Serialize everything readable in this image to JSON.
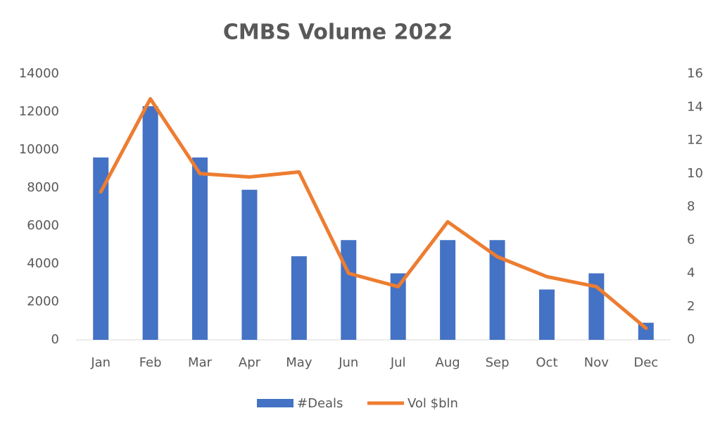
{
  "chart_data": {
    "type": "bar-line",
    "title": "CMBS Volume 2022",
    "categories": [
      "Jan",
      "Feb",
      "Mar",
      "Apr",
      "May",
      "Jun",
      "Jul",
      "Aug",
      "Sep",
      "Oct",
      "Nov",
      "Dec"
    ],
    "series": [
      {
        "name": "#Deals",
        "type": "bar",
        "color": "#4472c4",
        "values": [
          9600,
          12300,
          9600,
          7900,
          4400,
          5250,
          3500,
          5250,
          5250,
          2650,
          3500,
          900
        ]
      },
      {
        "name": "Vol $bln",
        "type": "line",
        "axis": "y2",
        "color": "#ed7d31",
        "values": [
          8.9,
          14.5,
          10.0,
          9.8,
          10.1,
          4.0,
          3.2,
          7.1,
          5.0,
          3.8,
          3.2,
          0.7
        ]
      }
    ],
    "ylim": [
      0,
      14000
    ],
    "yticks": [
      0,
      2000,
      4000,
      6000,
      8000,
      10000,
      12000,
      14000
    ],
    "y2lim": [
      0,
      16
    ],
    "y2ticks": [
      0,
      2,
      4,
      6,
      8,
      10,
      12,
      14,
      16
    ],
    "grid": false,
    "legend": "bottom"
  }
}
